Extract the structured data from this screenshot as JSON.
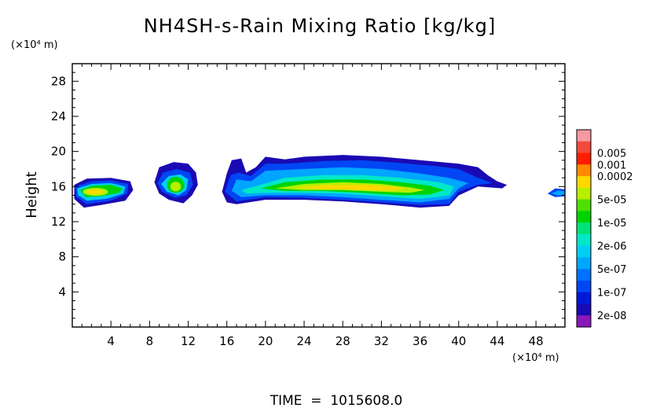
{
  "chart_data": {
    "type": "heatmap",
    "title": "NH4SH-s-Rain Mixing Ratio [kg/kg]",
    "xlabel": "",
    "ylabel": "Height",
    "x_unit": "(×10⁴ m)",
    "y_unit": "(×10⁴ m)",
    "xlim": [
      0,
      51
    ],
    "ylim": [
      0,
      30
    ],
    "x_ticks": [
      4,
      8,
      12,
      16,
      20,
      24,
      28,
      32,
      36,
      40,
      44,
      48
    ],
    "y_ticks": [
      4,
      8,
      12,
      16,
      20,
      24,
      28
    ],
    "colorbar": {
      "levels": [
        {
          "label": "",
          "color": "#f59aa0"
        },
        {
          "label": "0.005",
          "color": "#f24a3c"
        },
        {
          "label": "0.001",
          "color": "#ff1d00"
        },
        {
          "label": "0.0002",
          "color": "#ff8a00"
        },
        {
          "label": "",
          "color": "#ffd800"
        },
        {
          "label": "5e-05",
          "color": "#b8ee00"
        },
        {
          "label": "",
          "color": "#4fe000"
        },
        {
          "label": "1e-05",
          "color": "#00d400"
        },
        {
          "label": "",
          "color": "#00e27a"
        },
        {
          "label": "2e-06",
          "color": "#00e8c8"
        },
        {
          "label": "",
          "color": "#00cef2"
        },
        {
          "label": "5e-07",
          "color": "#00a6ff"
        },
        {
          "label": "",
          "color": "#0072ff"
        },
        {
          "label": "1e-07",
          "color": "#0046f4"
        },
        {
          "label": "",
          "color": "#0018d8"
        },
        {
          "label": "2e-08",
          "color": "#1a0ab4"
        },
        {
          "label": "",
          "color": "#8a18b8"
        }
      ]
    },
    "regions": [
      {
        "x": [
          0.2,
          6.0
        ],
        "y": [
          13.6,
          17.0
        ],
        "peak_level": "5e-05"
      },
      {
        "x": [
          8.5,
          13.0
        ],
        "y": [
          14.0,
          18.8
        ],
        "peak_level": "5e-05"
      },
      {
        "x": [
          15.5,
          45.0
        ],
        "y": [
          13.6,
          19.6
        ],
        "peak_level": "0.0002"
      },
      {
        "x": [
          49.0,
          51.0
        ],
        "y": [
          14.8,
          15.8
        ],
        "peak_level": "1e-07"
      }
    ]
  },
  "footer": {
    "time_text": "TIME  =  1015608.0"
  }
}
